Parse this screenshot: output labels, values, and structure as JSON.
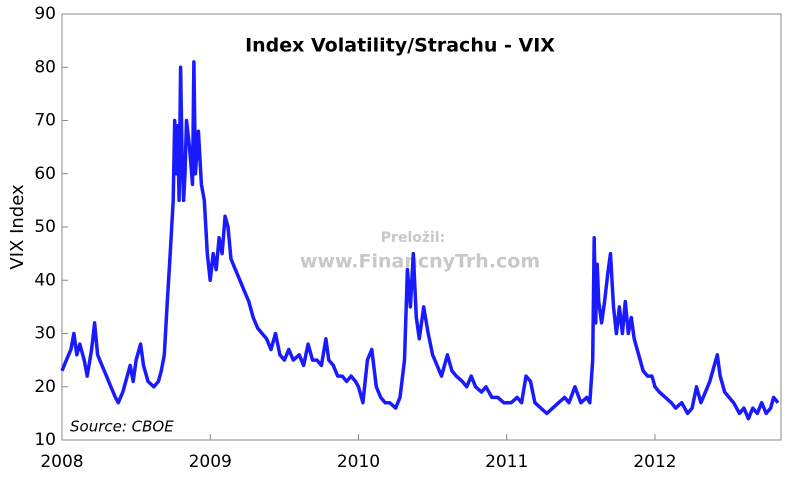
{
  "chart_data": {
    "type": "line",
    "title": "Index Volatility/Strachu - VIX",
    "y_label": "VIX Index",
    "source": "Source: CBOE",
    "watermark": [
      "Preložil:",
      "www.FinancnyTrh.com"
    ],
    "xlim": [
      2008,
      2012.85
    ],
    "xticks": [
      2008,
      2009,
      2010,
      2011,
      2012
    ],
    "ylim": [
      10,
      90
    ],
    "yticks": [
      10,
      20,
      30,
      40,
      50,
      60,
      70,
      80,
      90
    ],
    "grid": false,
    "series": [
      {
        "name": "VIX",
        "color": "#1a1aff",
        "x": [
          2008.0,
          2008.03,
          2008.06,
          2008.08,
          2008.1,
          2008.12,
          2008.15,
          2008.17,
          2008.2,
          2008.22,
          2008.24,
          2008.27,
          2008.3,
          2008.33,
          2008.36,
          2008.38,
          2008.41,
          2008.44,
          2008.46,
          2008.48,
          2008.5,
          2008.53,
          2008.55,
          2008.58,
          2008.62,
          2008.65,
          2008.67,
          2008.69,
          2008.71,
          2008.73,
          2008.75,
          2008.76,
          2008.77,
          2008.78,
          2008.79,
          2008.8,
          2008.81,
          2008.82,
          2008.83,
          2008.84,
          2008.86,
          2008.88,
          2008.89,
          2008.9,
          2008.92,
          2008.94,
          2008.96,
          2008.98,
          2009.0,
          2009.02,
          2009.04,
          2009.06,
          2009.08,
          2009.1,
          2009.12,
          2009.14,
          2009.17,
          2009.2,
          2009.23,
          2009.26,
          2009.29,
          2009.32,
          2009.35,
          2009.38,
          2009.41,
          2009.44,
          2009.47,
          2009.5,
          2009.53,
          2009.56,
          2009.6,
          2009.63,
          2009.66,
          2009.69,
          2009.72,
          2009.75,
          2009.78,
          2009.8,
          2009.83,
          2009.86,
          2009.89,
          2009.92,
          2009.95,
          2009.98,
          2010.0,
          2010.03,
          2010.06,
          2010.09,
          2010.12,
          2010.15,
          2010.18,
          2010.21,
          2010.25,
          2010.28,
          2010.31,
          2010.33,
          2010.35,
          2010.37,
          2010.39,
          2010.41,
          2010.44,
          2010.47,
          2010.5,
          2010.53,
          2010.56,
          2010.6,
          2010.63,
          2010.66,
          2010.7,
          2010.73,
          2010.76,
          2010.79,
          2010.83,
          2010.86,
          2010.9,
          2010.94,
          2010.98,
          2011.0,
          2011.03,
          2011.07,
          2011.1,
          2011.13,
          2011.16,
          2011.19,
          2011.23,
          2011.27,
          2011.31,
          2011.35,
          2011.39,
          2011.42,
          2011.46,
          2011.5,
          2011.54,
          2011.56,
          2011.58,
          2011.59,
          2011.6,
          2011.61,
          2011.62,
          2011.64,
          2011.66,
          2011.68,
          2011.7,
          2011.72,
          2011.74,
          2011.76,
          2011.78,
          2011.8,
          2011.82,
          2011.84,
          2011.86,
          2011.88,
          2011.9,
          2011.92,
          2011.95,
          2011.98,
          2012.0,
          2012.03,
          2012.07,
          2012.11,
          2012.14,
          2012.18,
          2012.22,
          2012.25,
          2012.28,
          2012.31,
          2012.34,
          2012.37,
          2012.4,
          2012.42,
          2012.44,
          2012.47,
          2012.5,
          2012.53,
          2012.57,
          2012.6,
          2012.63,
          2012.66,
          2012.69,
          2012.72,
          2012.75,
          2012.78,
          2012.8,
          2012.83
        ],
        "values": [
          23,
          25,
          27,
          30,
          26,
          28,
          25,
          22,
          27,
          32,
          26,
          24,
          22,
          20,
          18,
          17,
          19,
          22,
          24,
          21,
          25,
          28,
          24,
          21,
          20,
          21,
          23,
          26,
          36,
          45,
          55,
          70,
          60,
          69,
          55,
          80,
          63,
          55,
          60,
          70,
          65,
          58,
          81,
          60,
          68,
          58,
          55,
          45,
          40,
          45,
          42,
          48,
          45,
          52,
          50,
          44,
          42,
          40,
          38,
          36,
          33,
          31,
          30,
          29,
          27,
          30,
          26,
          25,
          27,
          25,
          26,
          24,
          28,
          25,
          25,
          24,
          29,
          25,
          24,
          22,
          22,
          21,
          22,
          21,
          20,
          17,
          25,
          27,
          20,
          18,
          17,
          17,
          16,
          18,
          25,
          42,
          35,
          45,
          33,
          29,
          35,
          30,
          26,
          24,
          22,
          26,
          23,
          22,
          21,
          20,
          22,
          20,
          19,
          20,
          18,
          18,
          17,
          17,
          17,
          18,
          17,
          22,
          21,
          17,
          16,
          15,
          16,
          17,
          18,
          17,
          20,
          17,
          18,
          17,
          25,
          48,
          32,
          43,
          36,
          32,
          36,
          41,
          45,
          35,
          30,
          35,
          30,
          36,
          30,
          33,
          29,
          27,
          25,
          23,
          22,
          22,
          20,
          19,
          18,
          17,
          16,
          17,
          15,
          16,
          20,
          17,
          19,
          21,
          24,
          26,
          22,
          19,
          18,
          17,
          15,
          16,
          14,
          16,
          15,
          17,
          15,
          16,
          18,
          17
        ]
      }
    ]
  }
}
